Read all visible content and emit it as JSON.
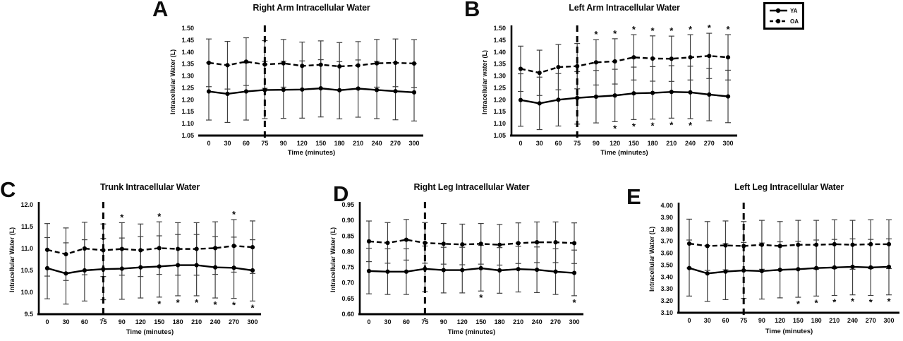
{
  "colors": {
    "ink": "#000000",
    "error_bar": "#3f3f3f",
    "background": "#ffffff"
  },
  "legend": {
    "items": [
      {
        "label": "YA",
        "line_style": "solid",
        "marker": "filled-circle"
      },
      {
        "label": "OA",
        "line_style": "dashed",
        "marker": "filled-circle"
      }
    ]
  },
  "chart_data": [
    {
      "type": "line",
      "panel": "A",
      "title": "Right Arm Intracellular Water",
      "xlabel": "Time (minutes)",
      "ylabel": "Intracellular Water (L)",
      "categories": [
        "0",
        "30",
        "60",
        "75",
        "90",
        "120",
        "150",
        "180",
        "210",
        "240",
        "270",
        "300"
      ],
      "ylim": [
        1.05,
        1.5
      ],
      "ystep": 0.05,
      "ydecimals": 2,
      "vline_at_category": "75",
      "grid": false,
      "series": [
        {
          "name": "YA",
          "line_style": "solid",
          "values": [
            1.235,
            1.225,
            1.235,
            1.241,
            1.242,
            1.243,
            1.248,
            1.24,
            1.247,
            1.241,
            1.236,
            1.231
          ],
          "error": 0.12
        },
        {
          "name": "OA",
          "line_style": "dashed",
          "values": [
            1.355,
            1.345,
            1.36,
            1.348,
            1.353,
            1.342,
            1.347,
            1.34,
            1.344,
            1.353,
            1.355,
            1.352
          ],
          "error": 0.1
        }
      ],
      "asterisks_top_at": [],
      "asterisks_bottom_at": []
    },
    {
      "type": "line",
      "panel": "B",
      "title": "Left Arm Intracellular Water",
      "xlabel": "Time (minutes)",
      "ylabel": "Intracellular water (L)",
      "categories": [
        "0",
        "30",
        "60",
        "75",
        "90",
        "120",
        "150",
        "180",
        "210",
        "240",
        "270",
        "300"
      ],
      "ylim": [
        1.05,
        1.5
      ],
      "ystep": 0.05,
      "ydecimals": 2,
      "vline_at_category": "75",
      "grid": false,
      "series": [
        {
          "name": "YA",
          "line_style": "solid",
          "values": [
            1.199,
            1.185,
            1.2,
            1.208,
            1.213,
            1.218,
            1.227,
            1.229,
            1.233,
            1.231,
            1.222,
            1.214
          ],
          "error": 0.11
        },
        {
          "name": "OA",
          "line_style": "dashed",
          "values": [
            1.33,
            1.313,
            1.337,
            1.341,
            1.357,
            1.361,
            1.378,
            1.373,
            1.372,
            1.378,
            1.384,
            1.378
          ],
          "error": 0.095
        }
      ],
      "asterisks_top_at": [
        "90",
        "120",
        "150",
        "180",
        "210",
        "240",
        "270",
        "300"
      ],
      "asterisks_bottom_at": [
        "120",
        "150",
        "180",
        "210",
        "240"
      ]
    },
    {
      "type": "line",
      "panel": "C",
      "title": "Trunk Intracellular Water",
      "xlabel": "Time (minutes)",
      "ylabel": "Intracellular Water (L)",
      "categories": [
        "0",
        "30",
        "60",
        "75",
        "90",
        "120",
        "150",
        "180",
        "210",
        "240",
        "270",
        "300"
      ],
      "ylim": [
        9.5,
        12.0
      ],
      "ystep": 0.5,
      "ydecimals": 1,
      "vline_at_category": "75",
      "grid": false,
      "series": [
        {
          "name": "YA",
          "line_style": "solid",
          "values": [
            10.55,
            10.43,
            10.5,
            10.53,
            10.54,
            10.57,
            10.59,
            10.62,
            10.62,
            10.57,
            10.56,
            10.5
          ],
          "error": 0.7
        },
        {
          "name": "OA",
          "line_style": "dashed",
          "values": [
            10.97,
            10.87,
            11.0,
            10.96,
            10.99,
            10.96,
            11.01,
            10.99,
            10.99,
            11.01,
            11.06,
            11.03
          ],
          "error": 0.6
        }
      ],
      "asterisks_top_at": [
        "90",
        "150",
        "270"
      ],
      "asterisks_bottom_at": [
        "150",
        "180",
        "210",
        "240",
        "270",
        "300"
      ]
    },
    {
      "type": "line",
      "panel": "D",
      "title": "Right Leg Intracellular Water",
      "xlabel": "Time (minutes)",
      "ylabel": "Intracellular Water (L)",
      "categories": [
        "0",
        "30",
        "60",
        "75",
        "90",
        "120",
        "150",
        "180",
        "210",
        "240",
        "270",
        "300"
      ],
      "ylim": [
        0.6,
        0.95
      ],
      "ystep": 0.05,
      "ydecimals": 2,
      "vline_at_category": "75",
      "grid": false,
      "series": [
        {
          "name": "YA",
          "line_style": "solid",
          "values": [
            0.738,
            0.736,
            0.736,
            0.745,
            0.741,
            0.741,
            0.747,
            0.74,
            0.744,
            0.742,
            0.736,
            0.732
          ],
          "error": 0.073
        },
        {
          "name": "OA",
          "line_style": "dashed",
          "values": [
            0.833,
            0.828,
            0.838,
            0.828,
            0.825,
            0.823,
            0.825,
            0.822,
            0.827,
            0.83,
            0.83,
            0.827
          ],
          "error": 0.065
        }
      ],
      "asterisks_top_at": [],
      "asterisks_bottom_at": [
        "150",
        "300"
      ]
    },
    {
      "type": "line",
      "panel": "E",
      "title": "Left Leg Intracellular Water",
      "xlabel": "Time (minutes)",
      "ylabel": "Intracellular Water (L)",
      "categories": [
        "0",
        "30",
        "60",
        "75",
        "90",
        "120",
        "150",
        "180",
        "210",
        "240",
        "270",
        "300"
      ],
      "ylim": [
        3.1,
        4.0
      ],
      "ystep": 0.1,
      "ydecimals": 2,
      "vline_at_category": "75",
      "grid": false,
      "series": [
        {
          "name": "YA",
          "line_style": "solid",
          "values": [
            3.475,
            3.43,
            3.445,
            3.455,
            3.45,
            3.46,
            3.465,
            3.475,
            3.48,
            3.485,
            3.48,
            3.485
          ],
          "error": 0.235
        },
        {
          "name": "OA",
          "line_style": "dashed",
          "values": [
            3.68,
            3.66,
            3.665,
            3.66,
            3.67,
            3.66,
            3.67,
            3.67,
            3.675,
            3.67,
            3.675,
            3.675
          ],
          "error": 0.205
        }
      ],
      "asterisks_top_at": [],
      "asterisks_bottom_at": [
        "150",
        "180",
        "210",
        "240",
        "270",
        "300"
      ]
    }
  ]
}
